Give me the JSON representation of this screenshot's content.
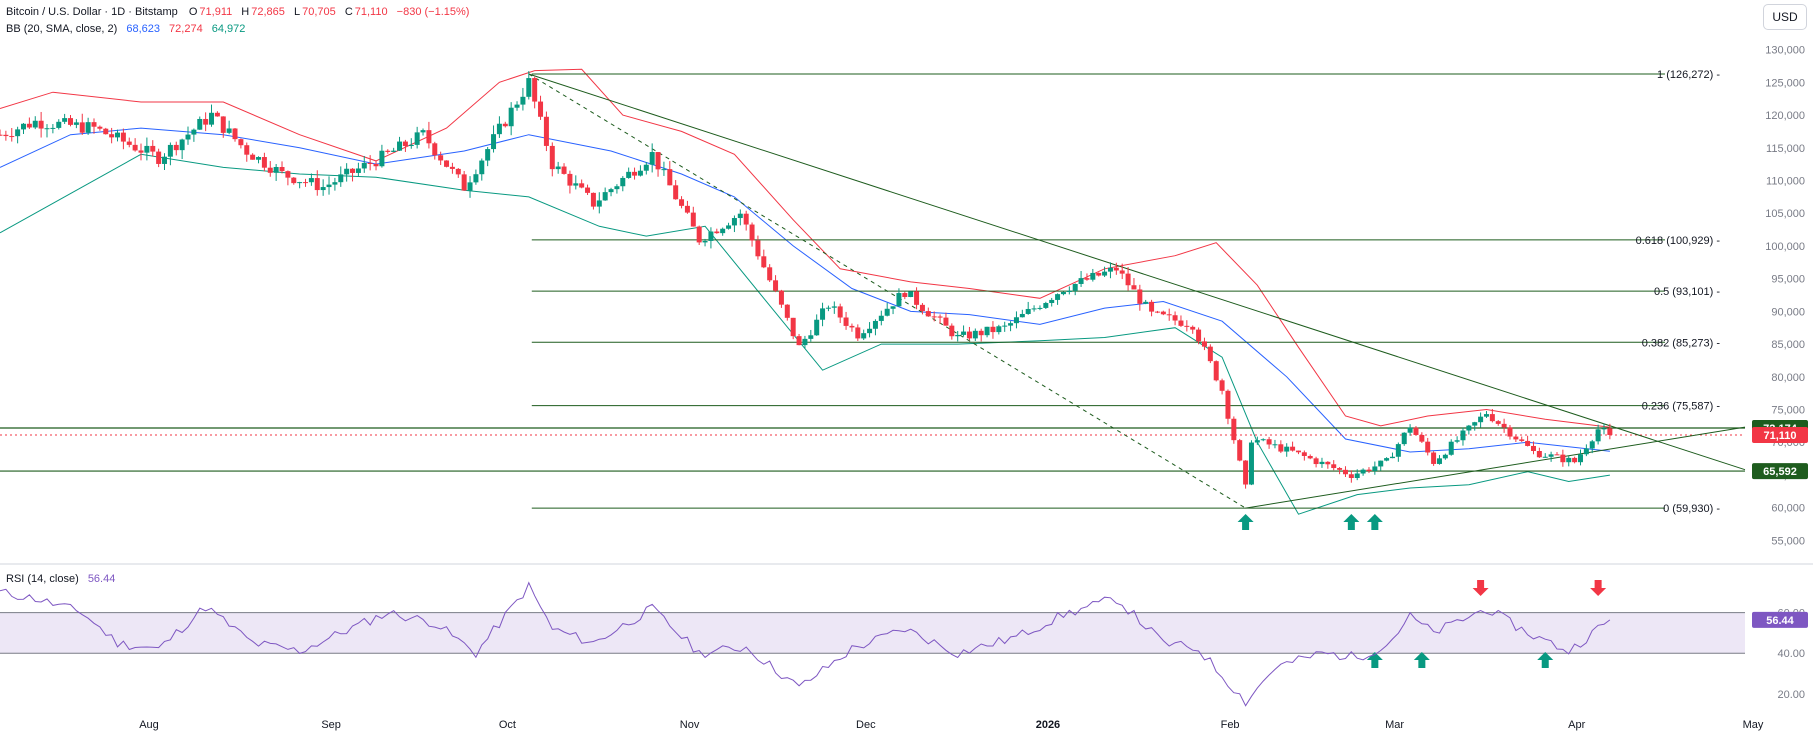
{
  "header": {
    "symbol": "Bitcoin / U.S. Dollar · 1D · Bitstamp",
    "open_label": "O",
    "open": "71,911",
    "high_label": "H",
    "high": "72,865",
    "low_label": "L",
    "low": "70,705",
    "close_label": "C",
    "close": "71,110",
    "change": "−830 (−1.15%)",
    "bb_label": "BB (20, SMA, close, 2)",
    "bb_mid": "68,623",
    "bb_upper": "72,274",
    "bb_lower": "64,972",
    "rsi_label": "RSI (14, close)",
    "rsi_value": "56.44"
  },
  "currency_button": "USD",
  "colors": {
    "up": "#089981",
    "down": "#f23645",
    "bb_upper": "#f23645",
    "bb_mid": "#2962ff",
    "bb_lower": "#089981",
    "trend": "#1e5c1e",
    "rsi": "#7e57c2",
    "rsi_band": "#ede7f6"
  },
  "chart_data": {
    "type": "candlestick",
    "title": "Bitcoin / U.S. Dollar · 1D · Bitstamp",
    "price_axis": {
      "ticks": [
        55000,
        60000,
        65000,
        70000,
        75000,
        80000,
        85000,
        90000,
        95000,
        100000,
        105000,
        110000,
        115000,
        120000,
        125000,
        130000
      ],
      "tick_labels": [
        "55,000",
        "60,000",
        "65,000",
        "70,000",
        "75,000",
        "80,000",
        "85,000",
        "90,000",
        "95,000",
        "100,000",
        "105,000",
        "110,000",
        "115,000",
        "120,000",
        "125,000",
        "130,000"
      ],
      "range": [
        52000,
        133000
      ]
    },
    "time_axis": {
      "tick_labels": [
        "Aug",
        "Sep",
        "Oct",
        "Nov",
        "Dec",
        "2026",
        "Feb",
        "Mar",
        "Apr",
        "May"
      ],
      "tick_dates": [
        "2025-08-01",
        "2025-09-01",
        "2025-10-01",
        "2025-11-01",
        "2025-12-01",
        "2026-01-01",
        "2026-02-01",
        "2026-03-01",
        "2026-04-01",
        "2026-05-01"
      ],
      "range": [
        "2025-07-08",
        "2026-05-01"
      ]
    },
    "price_path": [
      {
        "date": "2025-07-08",
        "close": 117000
      },
      {
        "date": "2025-07-14",
        "close": 119000
      },
      {
        "date": "2025-07-24",
        "close": 118000
      },
      {
        "date": "2025-08-04",
        "close": 113500
      },
      {
        "date": "2025-08-13",
        "close": 120000
      },
      {
        "date": "2025-08-19",
        "close": 114500
      },
      {
        "date": "2025-08-25",
        "close": 111000
      },
      {
        "date": "2025-09-01",
        "close": 109000
      },
      {
        "date": "2025-09-12",
        "close": 114000
      },
      {
        "date": "2025-09-18",
        "close": 117000
      },
      {
        "date": "2025-09-25",
        "close": 109000
      },
      {
        "date": "2025-10-06",
        "close": 125000
      },
      {
        "date": "2025-10-10",
        "close": 112500
      },
      {
        "date": "2025-10-17",
        "close": 106500
      },
      {
        "date": "2025-10-27",
        "close": 114000
      },
      {
        "date": "2025-11-04",
        "close": 101000
      },
      {
        "date": "2025-11-11",
        "close": 105000
      },
      {
        "date": "2025-11-21",
        "close": 84500
      },
      {
        "date": "2025-11-26",
        "close": 91000
      },
      {
        "date": "2025-12-01",
        "close": 86500
      },
      {
        "date": "2025-12-09",
        "close": 93000
      },
      {
        "date": "2025-12-18",
        "close": 86000
      },
      {
        "date": "2025-12-26",
        "close": 87500
      },
      {
        "date": "2026-01-05",
        "close": 93500
      },
      {
        "date": "2026-01-14",
        "close": 96500
      },
      {
        "date": "2026-01-20",
        "close": 89500
      },
      {
        "date": "2026-01-27",
        "close": 88000
      },
      {
        "date": "2026-02-01",
        "close": 78000
      },
      {
        "date": "2026-02-05",
        "close": 63000
      },
      {
        "date": "2026-02-06",
        "close": 70500
      },
      {
        "date": "2026-02-13",
        "close": 68500
      },
      {
        "date": "2026-02-23",
        "close": 65000
      },
      {
        "date": "2026-03-01",
        "close": 67000
      },
      {
        "date": "2026-03-05",
        "close": 72500
      },
      {
        "date": "2026-03-09",
        "close": 67000
      },
      {
        "date": "2026-03-18",
        "close": 74500
      },
      {
        "date": "2026-03-26",
        "close": 68500
      },
      {
        "date": "2026-04-02",
        "close": 67000
      },
      {
        "date": "2026-04-06",
        "close": 72000
      },
      {
        "date": "2026-04-08",
        "close": 71110
      }
    ],
    "bollinger": {
      "upper": [
        {
          "date": "2025-07-08",
          "v": 121000
        },
        {
          "date": "2025-07-17",
          "v": 123500
        },
        {
          "date": "2025-08-01",
          "v": 122000
        },
        {
          "date": "2025-08-15",
          "v": 122000
        },
        {
          "date": "2025-08-28",
          "v": 117000
        },
        {
          "date": "2025-09-10",
          "v": 113000
        },
        {
          "date": "2025-09-22",
          "v": 118000
        },
        {
          "date": "2025-10-01",
          "v": 125000
        },
        {
          "date": "2025-10-07",
          "v": 126800
        },
        {
          "date": "2025-10-15",
          "v": 127000
        },
        {
          "date": "2025-10-22",
          "v": 120000
        },
        {
          "date": "2025-11-01",
          "v": 117500
        },
        {
          "date": "2025-11-10",
          "v": 114000
        },
        {
          "date": "2025-11-20",
          "v": 104000
        },
        {
          "date": "2025-11-28",
          "v": 96500
        },
        {
          "date": "2025-12-10",
          "v": 94500
        },
        {
          "date": "2025-12-20",
          "v": 93500
        },
        {
          "date": "2026-01-01",
          "v": 92000
        },
        {
          "date": "2026-01-12",
          "v": 96500
        },
        {
          "date": "2026-01-24",
          "v": 98500
        },
        {
          "date": "2026-01-31",
          "v": 100500
        },
        {
          "date": "2026-02-07",
          "v": 94000
        },
        {
          "date": "2026-02-14",
          "v": 84500
        },
        {
          "date": "2026-02-22",
          "v": 74000
        },
        {
          "date": "2026-02-28",
          "v": 72500
        },
        {
          "date": "2026-03-08",
          "v": 74000
        },
        {
          "date": "2026-03-18",
          "v": 75000
        },
        {
          "date": "2026-03-28",
          "v": 73500
        },
        {
          "date": "2026-04-08",
          "v": 72274
        }
      ],
      "mid": [
        {
          "date": "2025-07-08",
          "v": 112000
        },
        {
          "date": "2025-07-20",
          "v": 117000
        },
        {
          "date": "2025-08-01",
          "v": 118000
        },
        {
          "date": "2025-08-15",
          "v": 117000
        },
        {
          "date": "2025-08-28",
          "v": 115000
        },
        {
          "date": "2025-09-10",
          "v": 112500
        },
        {
          "date": "2025-09-25",
          "v": 114500
        },
        {
          "date": "2025-10-06",
          "v": 117000
        },
        {
          "date": "2025-10-20",
          "v": 114500
        },
        {
          "date": "2025-11-01",
          "v": 111000
        },
        {
          "date": "2025-11-10",
          "v": 107500
        },
        {
          "date": "2025-11-20",
          "v": 100000
        },
        {
          "date": "2025-11-30",
          "v": 93500
        },
        {
          "date": "2025-12-10",
          "v": 90000
        },
        {
          "date": "2025-12-20",
          "v": 89500
        },
        {
          "date": "2026-01-01",
          "v": 88000
        },
        {
          "date": "2026-01-12",
          "v": 90500
        },
        {
          "date": "2026-01-22",
          "v": 91500
        },
        {
          "date": "2026-02-01",
          "v": 88500
        },
        {
          "date": "2026-02-12",
          "v": 80000
        },
        {
          "date": "2026-02-22",
          "v": 70500
        },
        {
          "date": "2026-03-05",
          "v": 68500
        },
        {
          "date": "2026-03-15",
          "v": 69000
        },
        {
          "date": "2026-03-25",
          "v": 70000
        },
        {
          "date": "2026-04-08",
          "v": 68623
        }
      ],
      "lower": [
        {
          "date": "2025-07-08",
          "v": 102000
        },
        {
          "date": "2025-07-20",
          "v": 108000
        },
        {
          "date": "2025-08-01",
          "v": 114000
        },
        {
          "date": "2025-08-15",
          "v": 112000
        },
        {
          "date": "2025-08-28",
          "v": 111000
        },
        {
          "date": "2025-09-10",
          "v": 110500
        },
        {
          "date": "2025-09-25",
          "v": 108500
        },
        {
          "date": "2025-10-06",
          "v": 107500
        },
        {
          "date": "2025-10-18",
          "v": 103000
        },
        {
          "date": "2025-10-26",
          "v": 101500
        },
        {
          "date": "2025-11-05",
          "v": 103000
        },
        {
          "date": "2025-11-15",
          "v": 92000
        },
        {
          "date": "2025-11-25",
          "v": 81000
        },
        {
          "date": "2025-12-05",
          "v": 85000
        },
        {
          "date": "2025-12-18",
          "v": 85000
        },
        {
          "date": "2026-01-01",
          "v": 85500
        },
        {
          "date": "2026-01-12",
          "v": 86000
        },
        {
          "date": "2026-01-24",
          "v": 87500
        },
        {
          "date": "2026-02-01",
          "v": 83000
        },
        {
          "date": "2026-02-07",
          "v": 70000
        },
        {
          "date": "2026-02-14",
          "v": 59000
        },
        {
          "date": "2026-02-24",
          "v": 62000
        },
        {
          "date": "2026-03-05",
          "v": 63000
        },
        {
          "date": "2026-03-15",
          "v": 63500
        },
        {
          "date": "2026-03-25",
          "v": 65500
        },
        {
          "date": "2026-04-01",
          "v": 64000
        },
        {
          "date": "2026-04-08",
          "v": 64972
        }
      ]
    },
    "fibonacci": {
      "start_date": "2025-10-06",
      "end_date": "2026-04-30",
      "levels": [
        {
          "label": "1 (126,272)",
          "price": 126272
        },
        {
          "label": "0.618 (100,929)",
          "price": 100929
        },
        {
          "label": "0.5 (93,101)",
          "price": 93101
        },
        {
          "label": "0.382 (85,273)",
          "price": 85273
        },
        {
          "label": "0.236 (75,587)",
          "price": 75587
        },
        {
          "label": "0 (59,930)",
          "price": 59930
        }
      ]
    },
    "horizontal_lines": [
      {
        "price": 72174,
        "label": "72,174",
        "color": "#1e5c1e",
        "style": "solid"
      },
      {
        "price": 65592,
        "label": "65,592",
        "color": "#1e5c1e",
        "style": "solid"
      },
      {
        "price": 71110,
        "label": "71,110",
        "color": "#f23645",
        "style": "dotted"
      }
    ],
    "trend_lines": [
      {
        "from": {
          "date": "2025-10-06",
          "price": 126272
        },
        "to": {
          "date": "2026-05-01",
          "price": 65800
        },
        "style": "solid"
      },
      {
        "from": {
          "date": "2025-10-06",
          "price": 126272
        },
        "to": {
          "date": "2026-02-05",
          "price": 59930
        },
        "style": "dashed"
      },
      {
        "from": {
          "date": "2026-02-05",
          "price": 59930
        },
        "to": {
          "date": "2026-05-01",
          "price": 72300
        },
        "style": "solid"
      }
    ],
    "signals_price": [
      {
        "date": "2026-02-05",
        "direction": "up"
      },
      {
        "date": "2026-02-23",
        "direction": "up"
      },
      {
        "date": "2026-02-27",
        "direction": "up"
      }
    ],
    "rsi": {
      "ticks": [
        20,
        40,
        60
      ],
      "tick_labels": [
        "20.00",
        "40.00",
        "60.00"
      ],
      "range": [
        12,
        82
      ],
      "band": [
        40,
        60
      ],
      "value_label": "56.44",
      "path": [
        {
          "date": "2025-07-08",
          "v": 70
        },
        {
          "date": "2025-07-14",
          "v": 67
        },
        {
          "date": "2025-07-22",
          "v": 60
        },
        {
          "date": "2025-07-28",
          "v": 45
        },
        {
          "date": "2025-08-04",
          "v": 42
        },
        {
          "date": "2025-08-12",
          "v": 63
        },
        {
          "date": "2025-08-20",
          "v": 45
        },
        {
          "date": "2025-08-28",
          "v": 41
        },
        {
          "date": "2025-09-04",
          "v": 50
        },
        {
          "date": "2025-09-12",
          "v": 60
        },
        {
          "date": "2025-09-20",
          "v": 55
        },
        {
          "date": "2025-09-27",
          "v": 40
        },
        {
          "date": "2025-10-06",
          "v": 73
        },
        {
          "date": "2025-10-10",
          "v": 52
        },
        {
          "date": "2025-10-17",
          "v": 45
        },
        {
          "date": "2025-10-27",
          "v": 62
        },
        {
          "date": "2025-11-04",
          "v": 40
        },
        {
          "date": "2025-11-12",
          "v": 43
        },
        {
          "date": "2025-11-21",
          "v": 23
        },
        {
          "date": "2025-11-30",
          "v": 42
        },
        {
          "date": "2025-12-09",
          "v": 52
        },
        {
          "date": "2025-12-18",
          "v": 40
        },
        {
          "date": "2025-12-28",
          "v": 48
        },
        {
          "date": "2026-01-05",
          "v": 59
        },
        {
          "date": "2026-01-14",
          "v": 67
        },
        {
          "date": "2026-01-22",
          "v": 45
        },
        {
          "date": "2026-01-28",
          "v": 42
        },
        {
          "date": "2026-02-05",
          "v": 16
        },
        {
          "date": "2026-02-10",
          "v": 33
        },
        {
          "date": "2026-02-18",
          "v": 40
        },
        {
          "date": "2026-02-24",
          "v": 38
        },
        {
          "date": "2026-03-01",
          "v": 44
        },
        {
          "date": "2026-03-05",
          "v": 58
        },
        {
          "date": "2026-03-09",
          "v": 50
        },
        {
          "date": "2026-03-18",
          "v": 62
        },
        {
          "date": "2026-03-25",
          "v": 50
        },
        {
          "date": "2026-04-01",
          "v": 41
        },
        {
          "date": "2026-04-06",
          "v": 52
        },
        {
          "date": "2026-04-08",
          "v": 56.44
        }
      ]
    },
    "signals_rsi": [
      {
        "date": "2026-02-27",
        "direction": "up"
      },
      {
        "date": "2026-03-07",
        "direction": "up"
      },
      {
        "date": "2026-03-28",
        "direction": "up"
      },
      {
        "date": "2026-03-17",
        "direction": "down"
      },
      {
        "date": "2026-04-06",
        "direction": "down"
      }
    ]
  }
}
